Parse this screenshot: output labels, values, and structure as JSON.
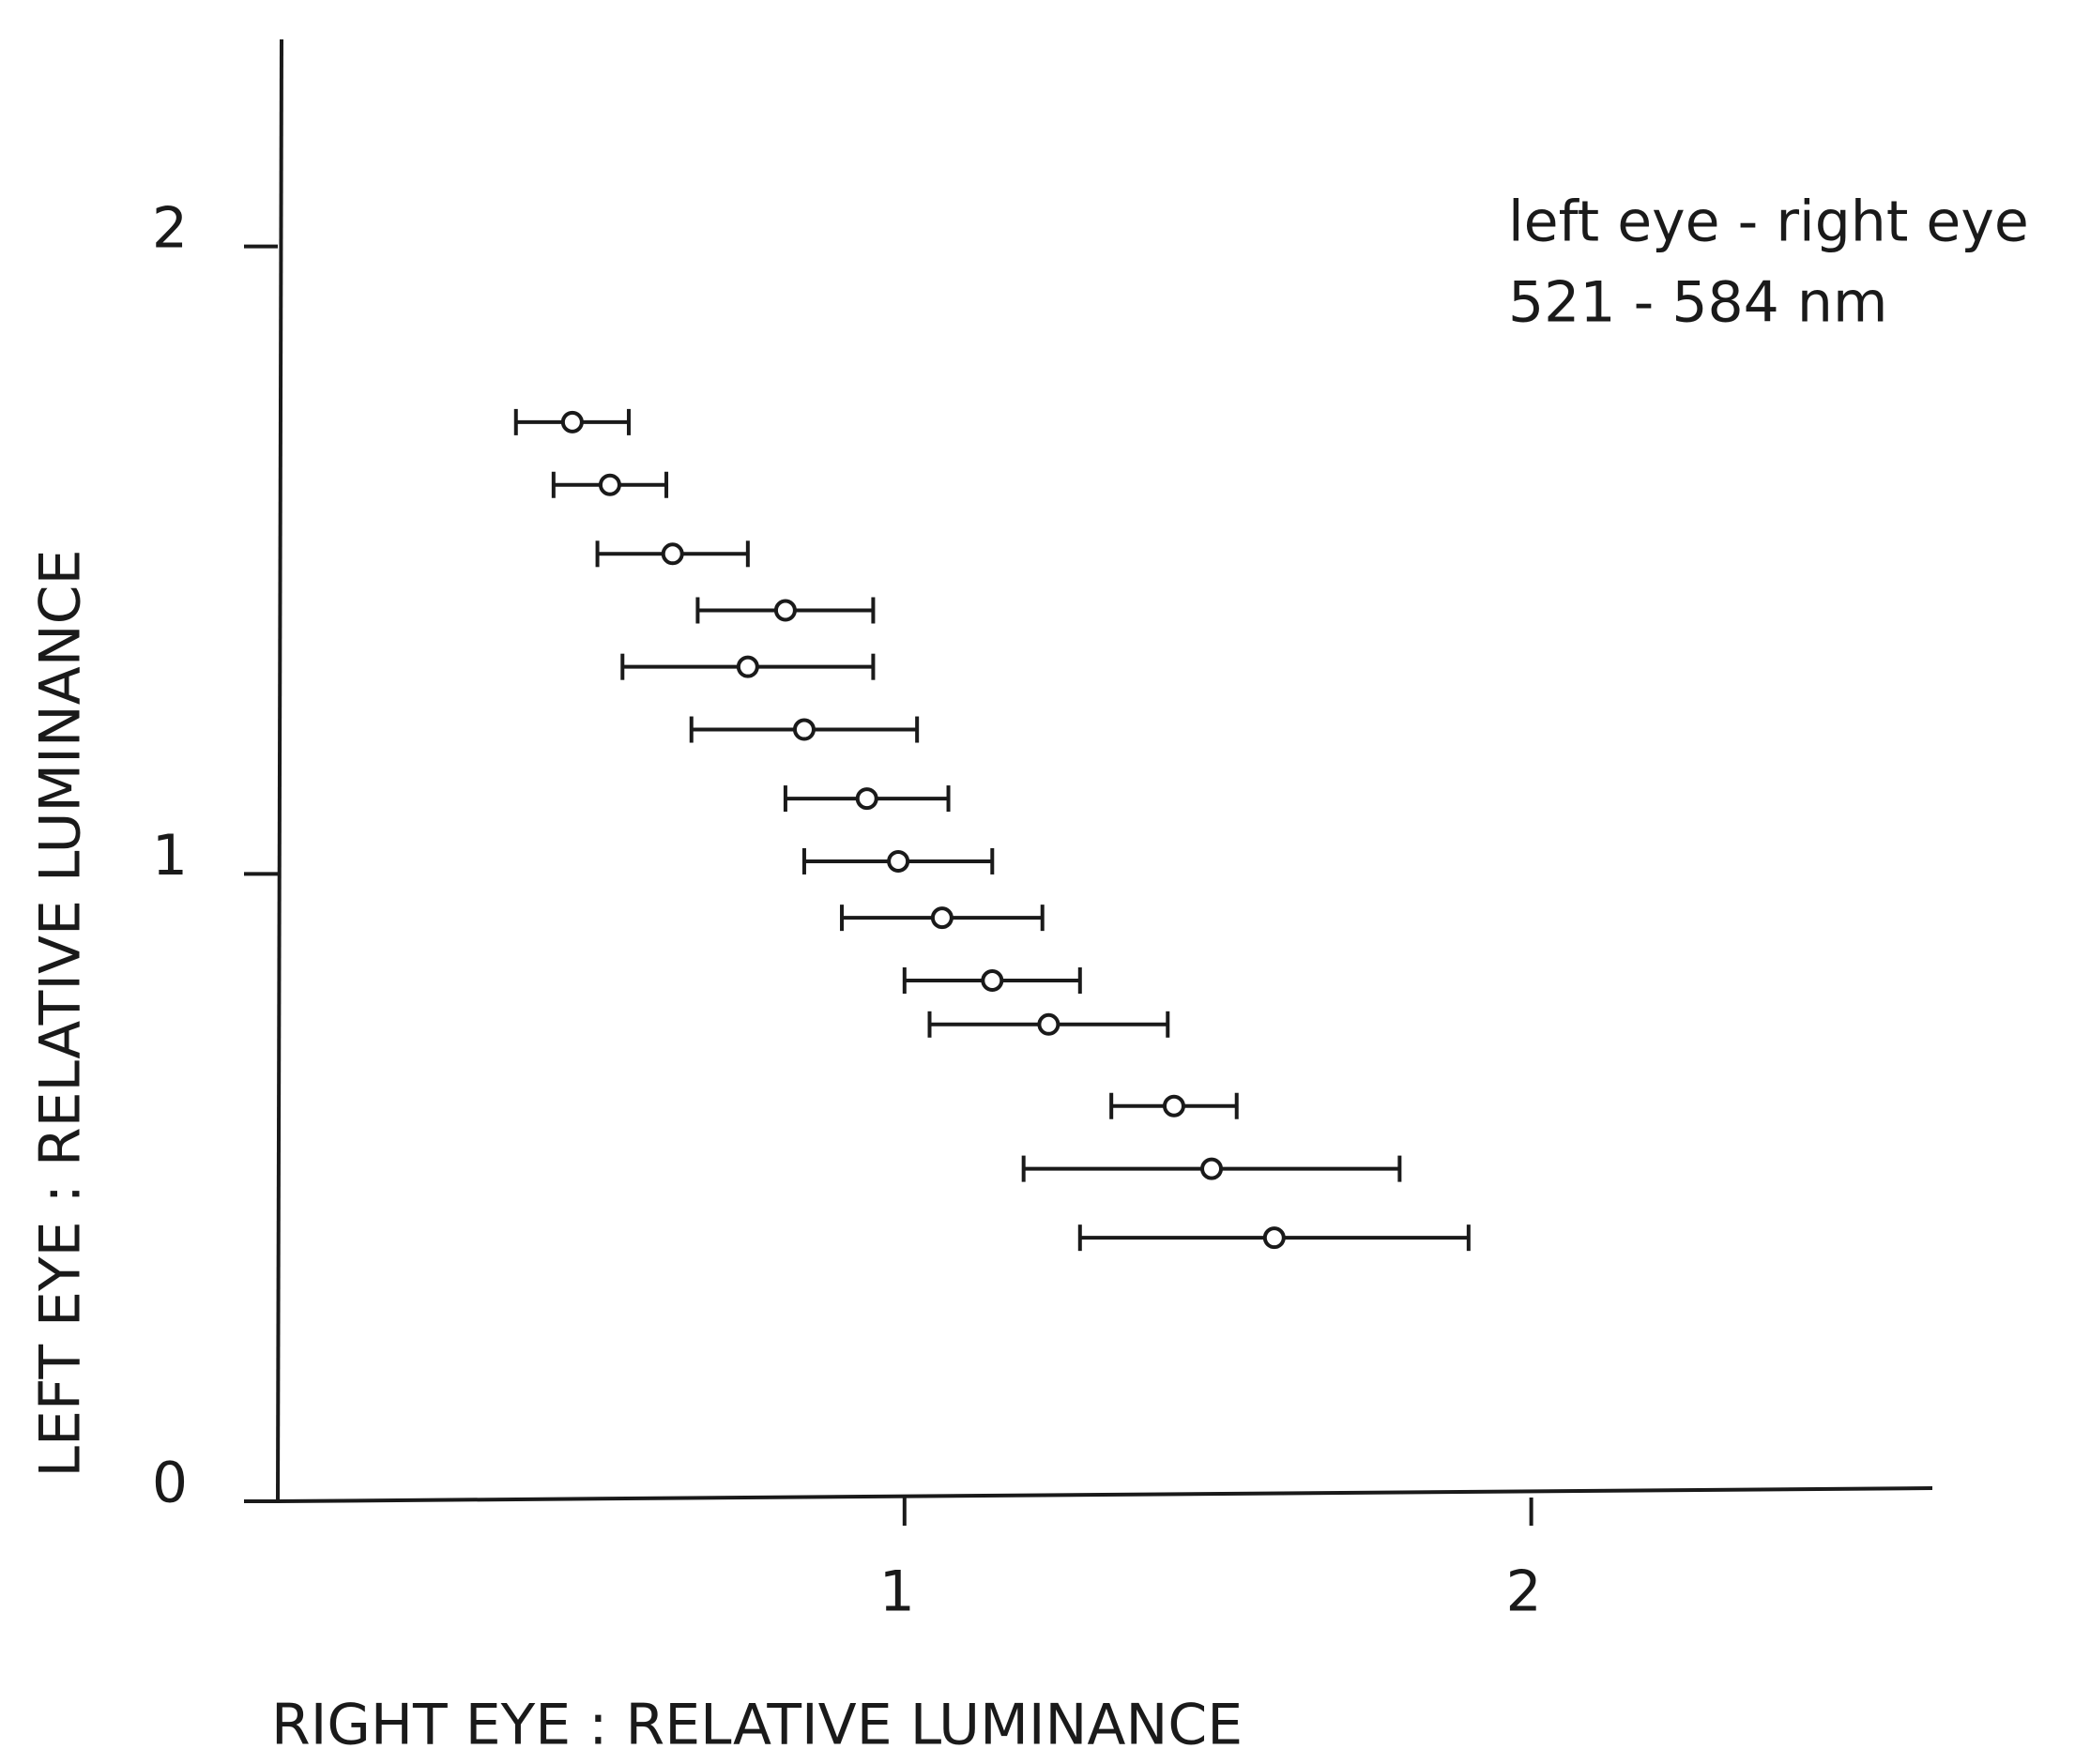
{
  "chart_data": {
    "type": "scatter",
    "xlabel": "RIGHT EYE : RELATIVE LUMINANCE",
    "ylabel": "LEFT EYE : RELATIVE LUMINANCE",
    "annotations": [
      "left eye - right eye",
      "521 - 584 nm"
    ],
    "x": [
      0.47,
      0.53,
      0.63,
      0.81,
      0.75,
      0.84,
      0.94,
      0.99,
      1.06,
      1.14,
      1.23,
      1.43,
      1.49,
      1.59
    ],
    "y": [
      1.72,
      1.62,
      1.51,
      1.42,
      1.33,
      1.23,
      1.12,
      1.02,
      0.93,
      0.83,
      0.76,
      0.63,
      0.53,
      0.42
    ],
    "xerr": [
      0.09,
      0.09,
      0.12,
      0.14,
      0.2,
      0.18,
      0.13,
      0.15,
      0.16,
      0.14,
      0.19,
      0.1,
      0.3,
      0.31
    ],
    "color": "#1a1a1a",
    "xlim": [
      0,
      2.64
    ],
    "ylim": [
      0,
      2.33
    ],
    "xticks": [
      1,
      2
    ],
    "yticks": [
      0,
      1,
      2
    ]
  }
}
